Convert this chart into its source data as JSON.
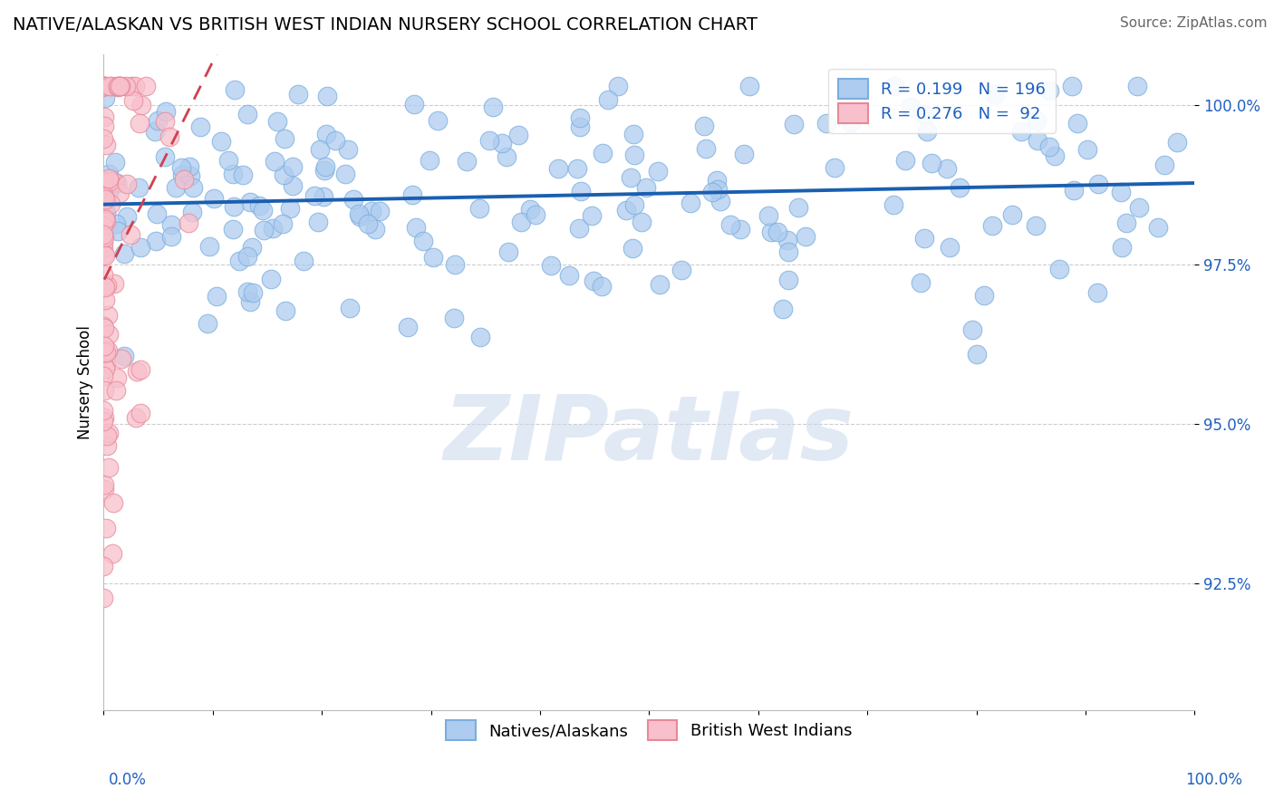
{
  "title": "NATIVE/ALASKAN VS BRITISH WEST INDIAN NURSERY SCHOOL CORRELATION CHART",
  "source": "Source: ZipAtlas.com",
  "ylabel": "Nursery School",
  "ytick_labels": [
    "100.0%",
    "97.5%",
    "95.0%",
    "92.5%"
  ],
  "ytick_values": [
    1.0,
    0.975,
    0.95,
    0.925
  ],
  "xrange": [
    0.0,
    1.0
  ],
  "yrange": [
    0.905,
    1.008
  ],
  "blue_scatter_color": "#aeccf0",
  "blue_edge_color": "#7aaede",
  "pink_scatter_color": "#f8c0cc",
  "pink_edge_color": "#e88898",
  "trend_blue_color": "#1a5fb0",
  "trend_pink_color": "#d04050",
  "tick_label_color": "#2060c0",
  "title_fontsize": 14,
  "source_fontsize": 11,
  "axis_label_fontsize": 12,
  "tick_fontsize": 12,
  "legend_fontsize": 13,
  "R_blue": 0.199,
  "N_blue": 196,
  "R_pink": 0.276,
  "N_pink": 92,
  "background_color": "#ffffff",
  "grid_color": "#c8c8c8",
  "watermark_color": "#c8d8ec",
  "watermark_alpha": 0.55
}
